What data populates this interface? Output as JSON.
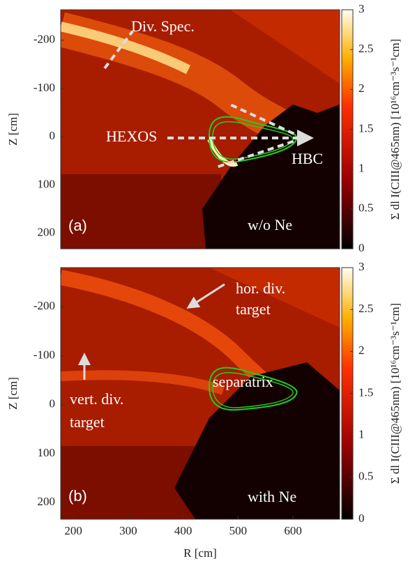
{
  "chart_data": [
    {
      "type": "heatmap",
      "panel_label": "(a)",
      "ylabel": "Z [cm]",
      "xlim": [
        177,
        685
      ],
      "ylim": [
        -263,
        232
      ],
      "yticks": [
        -200,
        -100,
        0,
        100,
        200
      ],
      "colorbar": {
        "lim": [
          0,
          3
        ],
        "ticks": [
          0,
          0.5,
          1,
          1.5,
          2,
          2.5,
          3
        ],
        "label": "Σ dl I(CIII@465nm) [10¹⁶cm⁻³s⁻¹cm]"
      },
      "annotations": [
        "Div. Spec.",
        "HEXOS",
        "HBC",
        "w/o Ne"
      ]
    },
    {
      "type": "heatmap",
      "panel_label": "(b)",
      "ylabel": "Z [cm]",
      "xlabel": "R [cm]",
      "xlim": [
        177,
        685
      ],
      "ylim": [
        -280,
        234
      ],
      "xticks": [
        200,
        300,
        400,
        500,
        600
      ],
      "yticks": [
        -200,
        -100,
        0,
        100,
        200
      ],
      "colorbar": {
        "lim": [
          0,
          3
        ],
        "ticks": [
          0,
          0.5,
          1,
          1.5,
          2,
          2.5,
          3
        ],
        "label": "Σ dl I(CIII@465nm) [10¹⁶cm⁻³s⁻¹cm]"
      },
      "annotations": [
        "hor. div.",
        "target",
        "vert. div.",
        "target",
        "separatrix",
        "with Ne"
      ]
    }
  ]
}
